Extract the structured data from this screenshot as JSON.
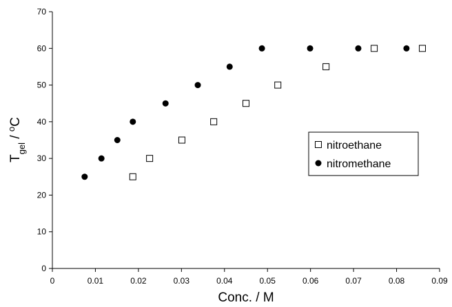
{
  "chart_data": {
    "type": "scatter",
    "xlabel": "Conc. / M",
    "ylabel_parts": [
      "T",
      "gel",
      " / ",
      "o",
      "C"
    ],
    "xlim": [
      0,
      0.09
    ],
    "xticks": [
      0,
      0.01,
      0.02,
      0.03,
      0.04,
      0.05,
      0.06,
      0.07,
      0.08,
      0.09
    ],
    "ylim": [
      0,
      70
    ],
    "yticks": [
      0,
      10,
      20,
      30,
      40,
      50,
      60,
      70
    ],
    "grid": false,
    "legend_position": "center-right",
    "series": [
      {
        "name": "nitroethane",
        "marker": "square",
        "color": "#000000",
        "x": [
          0.0187,
          0.0226,
          0.0301,
          0.0375,
          0.045,
          0.0524,
          0.0636,
          0.0748,
          0.086
        ],
        "y": [
          25,
          30,
          35,
          40,
          45,
          50,
          55,
          60,
          60
        ]
      },
      {
        "name": "nitromethane",
        "marker": "circle",
        "color": "#000000",
        "x": [
          0.0075,
          0.0114,
          0.0151,
          0.0187,
          0.0263,
          0.0338,
          0.0412,
          0.0487,
          0.0599,
          0.0711,
          0.0823
        ],
        "y": [
          25,
          30,
          35,
          40,
          45,
          50,
          55,
          60,
          60,
          60,
          60
        ]
      }
    ]
  }
}
